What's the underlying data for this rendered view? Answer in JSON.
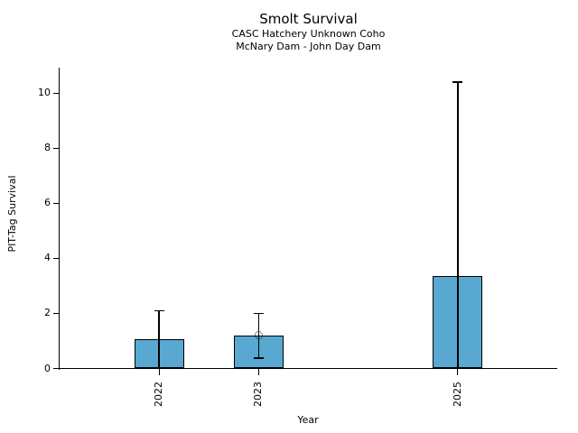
{
  "chart_data": {
    "type": "bar",
    "title": "Smolt Survival",
    "subtitle_line1": "CASC Hatchery Unknown Coho",
    "subtitle_line2": "McNary Dam - John Day Dam",
    "xlabel": "Year",
    "ylabel": "PIT-Tag Survival",
    "categories": [
      "2022",
      "2023",
      "2025"
    ],
    "x": [
      2022,
      2023,
      2025
    ],
    "values": [
      1.05,
      1.2,
      3.35
    ],
    "error_low": [
      0,
      0.37,
      0
    ],
    "error_high": [
      2.1,
      2.0,
      10.4
    ],
    "point_markers": [
      {
        "x": 2023,
        "y": 1.2,
        "marker": "open-circle-dotted"
      }
    ],
    "xlim": [
      2021,
      2026
    ],
    "ylim": [
      0,
      10.9
    ],
    "yticks": [
      0,
      2,
      4,
      6,
      8,
      10
    ],
    "bar_width_years": 0.5,
    "bar_color": "#58A8D2",
    "bar_edge_color": "#000000",
    "error_color": "#000000",
    "axis_color": "#000000",
    "grid": false,
    "legend": false
  }
}
